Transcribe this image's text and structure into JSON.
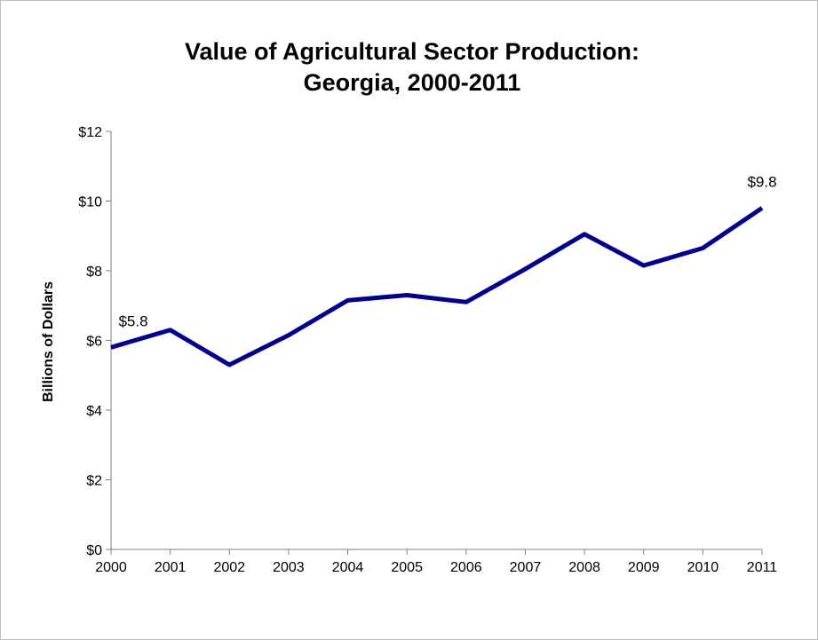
{
  "chart_data": {
    "type": "line",
    "title_lines": [
      "Value of Agricultural Sector Production:",
      "Georgia, 2000-2011"
    ],
    "xlabel": "",
    "ylabel": "Billions of Dollars",
    "x": [
      "2000",
      "2001",
      "2002",
      "2003",
      "2004",
      "2005",
      "2006",
      "2007",
      "2008",
      "2009",
      "2010",
      "2011"
    ],
    "series": [
      {
        "values": [
          5.8,
          6.3,
          5.3,
          6.15,
          7.15,
          7.3,
          7.1,
          8.05,
          9.05,
          8.15,
          8.65,
          9.8
        ],
        "color": "#00008b"
      }
    ],
    "ylim": [
      0,
      12
    ],
    "yticks": [
      0,
      2,
      4,
      6,
      8,
      10,
      12
    ],
    "ytick_labels": [
      "$0",
      "$2",
      "$4",
      "$6",
      "$8",
      "$10",
      "$12"
    ],
    "data_labels": [
      {
        "index": 0,
        "text": "$5.8"
      },
      {
        "index": 11,
        "text": "$9.8"
      }
    ],
    "grid": false,
    "legend": "none"
  }
}
